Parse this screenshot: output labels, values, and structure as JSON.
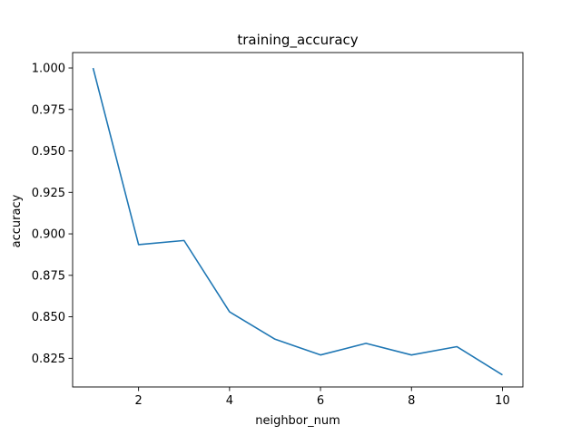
{
  "chart_data": {
    "type": "line",
    "title": "training_accuracy",
    "xlabel": "neighbor_num",
    "ylabel": "accuracy",
    "xlim": [
      0.55,
      10.45
    ],
    "ylim": [
      0.8077,
      1.0093
    ],
    "xticks": [
      2,
      4,
      6,
      8,
      10
    ],
    "yticks": [
      0.825,
      0.85,
      0.875,
      0.9,
      0.925,
      0.95,
      0.975,
      1.0
    ],
    "ytick_labels": [
      "0.825",
      "0.850",
      "0.875",
      "0.900",
      "0.925",
      "0.950",
      "0.975",
      "1.000"
    ],
    "grid": false,
    "series": [
      {
        "color": "#1f77b4",
        "x": [
          1,
          2,
          3,
          4,
          5,
          6,
          7,
          8,
          9,
          10
        ],
        "y": [
          1.0,
          0.8935,
          0.896,
          0.853,
          0.8365,
          0.827,
          0.834,
          0.827,
          0.832,
          0.815
        ]
      }
    ]
  }
}
